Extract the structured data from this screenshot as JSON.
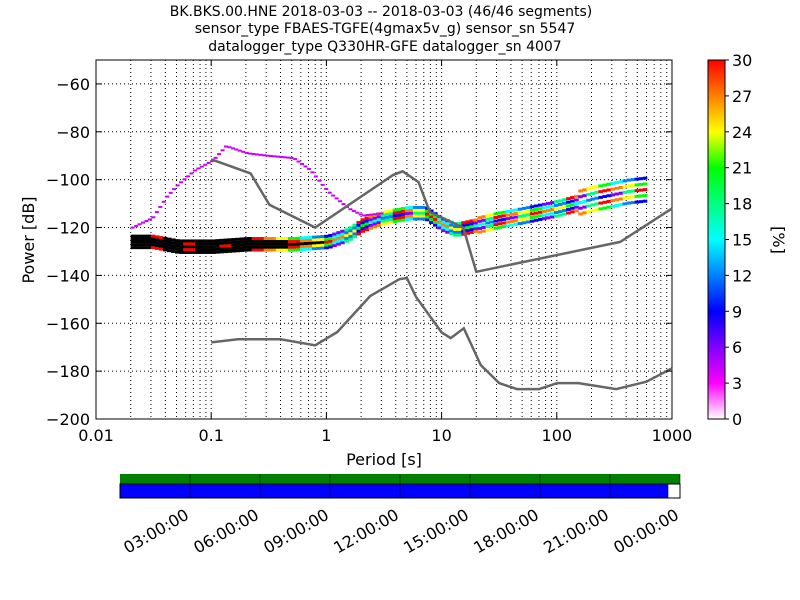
{
  "header": {
    "title_line1": "BK.BKS.00.HNE   2018-03-03 -- 2018-03-03  (46/46 segments)",
    "title_line2": "sensor_type FBAES-TGFE(4gmax5v_g) sensor_sn 5547",
    "title_line3": "datalogger_type Q330HR-GFE datalogger_sn 4007"
  },
  "colorbar": {
    "label": "[%]",
    "ticks": [
      "0",
      "3",
      "6",
      "9",
      "12",
      "15",
      "18",
      "21",
      "24",
      "27",
      "30"
    ],
    "range": [
      0,
      30
    ],
    "colors": [
      "#ffffff",
      "#ff00ff",
      "#8000ff",
      "#0000ff",
      "#0080ff",
      "#00ffff",
      "#00ff80",
      "#00ff00",
      "#ffff00",
      "#ff8000",
      "#ff0000"
    ]
  },
  "timeline": {
    "labels": [
      "03:00:00",
      "06:00:00",
      "09:00:00",
      "12:00:00",
      "15:00:00",
      "18:00:00",
      "21:00:00",
      "00:00:00"
    ],
    "availability_color": "#008000",
    "coverage_color": "#0000ff",
    "coverage_fraction": 0.98
  },
  "chart_data": {
    "type": "heatmap",
    "title": "BK.BKS.00.HNE   2018-03-03 -- 2018-03-03  (46/46 segments)",
    "xlabel": "Period [s]",
    "ylabel": "Power [dB]",
    "xscale": "log",
    "xlim": [
      0.01,
      1000
    ],
    "ylim": [
      -200,
      -50
    ],
    "x_tick_labels": [
      "0.01",
      "0.1",
      "1",
      "10",
      "100",
      "1000"
    ],
    "y_tick_labels": [
      "−200",
      "−180",
      "−160",
      "−140",
      "−120",
      "−100",
      "−80",
      "−60"
    ],
    "grid": true,
    "noise_models": [
      {
        "name": "",
        "color": "#666666",
        "points": [
          [
            0.1,
            -168
          ],
          [
            0.17,
            -166.7
          ],
          [
            0.4,
            -166.7
          ],
          [
            0.8,
            -169.2
          ],
          [
            1.24,
            -163.7
          ],
          [
            2.4,
            -148.6
          ],
          [
            4.3,
            -141.6
          ],
          [
            5,
            -141.1
          ],
          [
            6,
            -149
          ],
          [
            10,
            -163.8
          ],
          [
            12,
            -166.2
          ],
          [
            15.6,
            -162.1
          ],
          [
            21.9,
            -177.5
          ],
          [
            31.6,
            -185
          ],
          [
            45,
            -187.5
          ],
          [
            70,
            -187.5
          ],
          [
            101,
            -185
          ],
          [
            154,
            -185
          ],
          [
            328,
            -187.5
          ],
          [
            600,
            -184.4
          ],
          [
            1000,
            -178.8
          ]
        ]
      },
      {
        "name": "",
        "color": "#666666",
        "points": [
          [
            0.1,
            -91.5
          ],
          [
            0.22,
            -97.4
          ],
          [
            0.32,
            -110.5
          ],
          [
            0.8,
            -120
          ],
          [
            3.8,
            -98
          ],
          [
            4.6,
            -96.5
          ],
          [
            6.3,
            -101
          ],
          [
            7.9,
            -113.5
          ],
          [
            15.4,
            -120
          ],
          [
            20,
            -138.5
          ],
          [
            354.8,
            -126
          ],
          [
            1000,
            -112
          ]
        ]
      }
    ],
    "psd_bands": [
      {
        "name": "",
        "points": [
          [
            0.02,
            -126
          ],
          [
            0.03,
            -126
          ],
          [
            0.05,
            -128
          ],
          [
            0.1,
            -128
          ],
          [
            0.2,
            -127
          ],
          [
            0.5,
            -127
          ],
          [
            1,
            -126
          ],
          [
            1.5,
            -123
          ],
          [
            2,
            -119
          ],
          [
            3,
            -116
          ],
          [
            5,
            -114
          ],
          [
            7,
            -114
          ],
          [
            10,
            -119
          ],
          [
            13,
            -121
          ],
          [
            20,
            -119
          ],
          [
            30,
            -117
          ],
          [
            50,
            -115
          ],
          [
            100,
            -112
          ],
          [
            200,
            -108
          ],
          [
            400,
            -105
          ],
          [
            600,
            -104
          ]
        ],
        "percent": 20
      }
    ],
    "sparse_trace": {
      "points": [
        [
          0.02,
          -120
        ],
        [
          0.03,
          -116
        ],
        [
          0.04,
          -107
        ],
        [
          0.05,
          -102
        ],
        [
          0.07,
          -96
        ],
        [
          0.1,
          -92
        ],
        [
          0.13,
          -86
        ],
        [
          0.2,
          -89
        ],
        [
          0.3,
          -90
        ],
        [
          0.5,
          -91
        ],
        [
          0.7,
          -96
        ],
        [
          1,
          -105
        ],
        [
          1.5,
          -112
        ],
        [
          2,
          -115
        ],
        [
          3,
          -114
        ]
      ],
      "percent": 3
    }
  }
}
